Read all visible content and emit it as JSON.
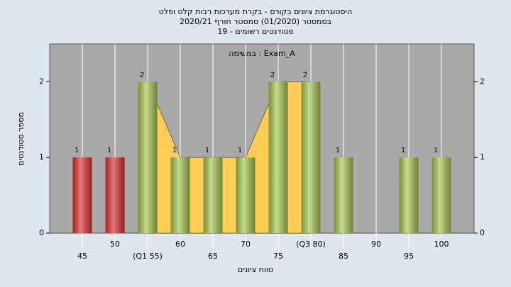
{
  "chart_data": {
    "type": "bar",
    "title": "היסטוגרמת ציונים בקורס - בקרת מערכות רבות קלט ופלט",
    "subtitle": "בסמסטר  (01/2020)  סמסטר חורף  2020/21",
    "subtitle2": "19 - סטודנטים רשומים",
    "annotation": "במשימה : Exam_A",
    "y_label": "מספר סטודנטים",
    "x_label": "טווח ציונים",
    "categories": [
      "45",
      "50",
      "(Q1 55)",
      "60",
      "65",
      "70",
      "75",
      "(Q3 80)",
      "85",
      "90",
      "95",
      "100"
    ],
    "values": [
      1,
      1,
      2,
      1,
      1,
      1,
      2,
      2,
      1,
      0,
      1,
      1
    ],
    "colors": [
      "#e03030",
      "#e03030",
      "#a8c850",
      "#a8c850",
      "#a8c850",
      "#a8c850",
      "#a8c850",
      "#a8c850",
      "#a8c850",
      "#a8c850",
      "#a8c850",
      "#a8c850"
    ],
    "area": {
      "color": "#ffcc55",
      "values": [
        null,
        null,
        2,
        1,
        1,
        1,
        2,
        2,
        null,
        null,
        null,
        null
      ]
    },
    "ylim": [
      0,
      2.5
    ],
    "yticks": [
      0,
      1,
      2
    ],
    "grid": true
  }
}
